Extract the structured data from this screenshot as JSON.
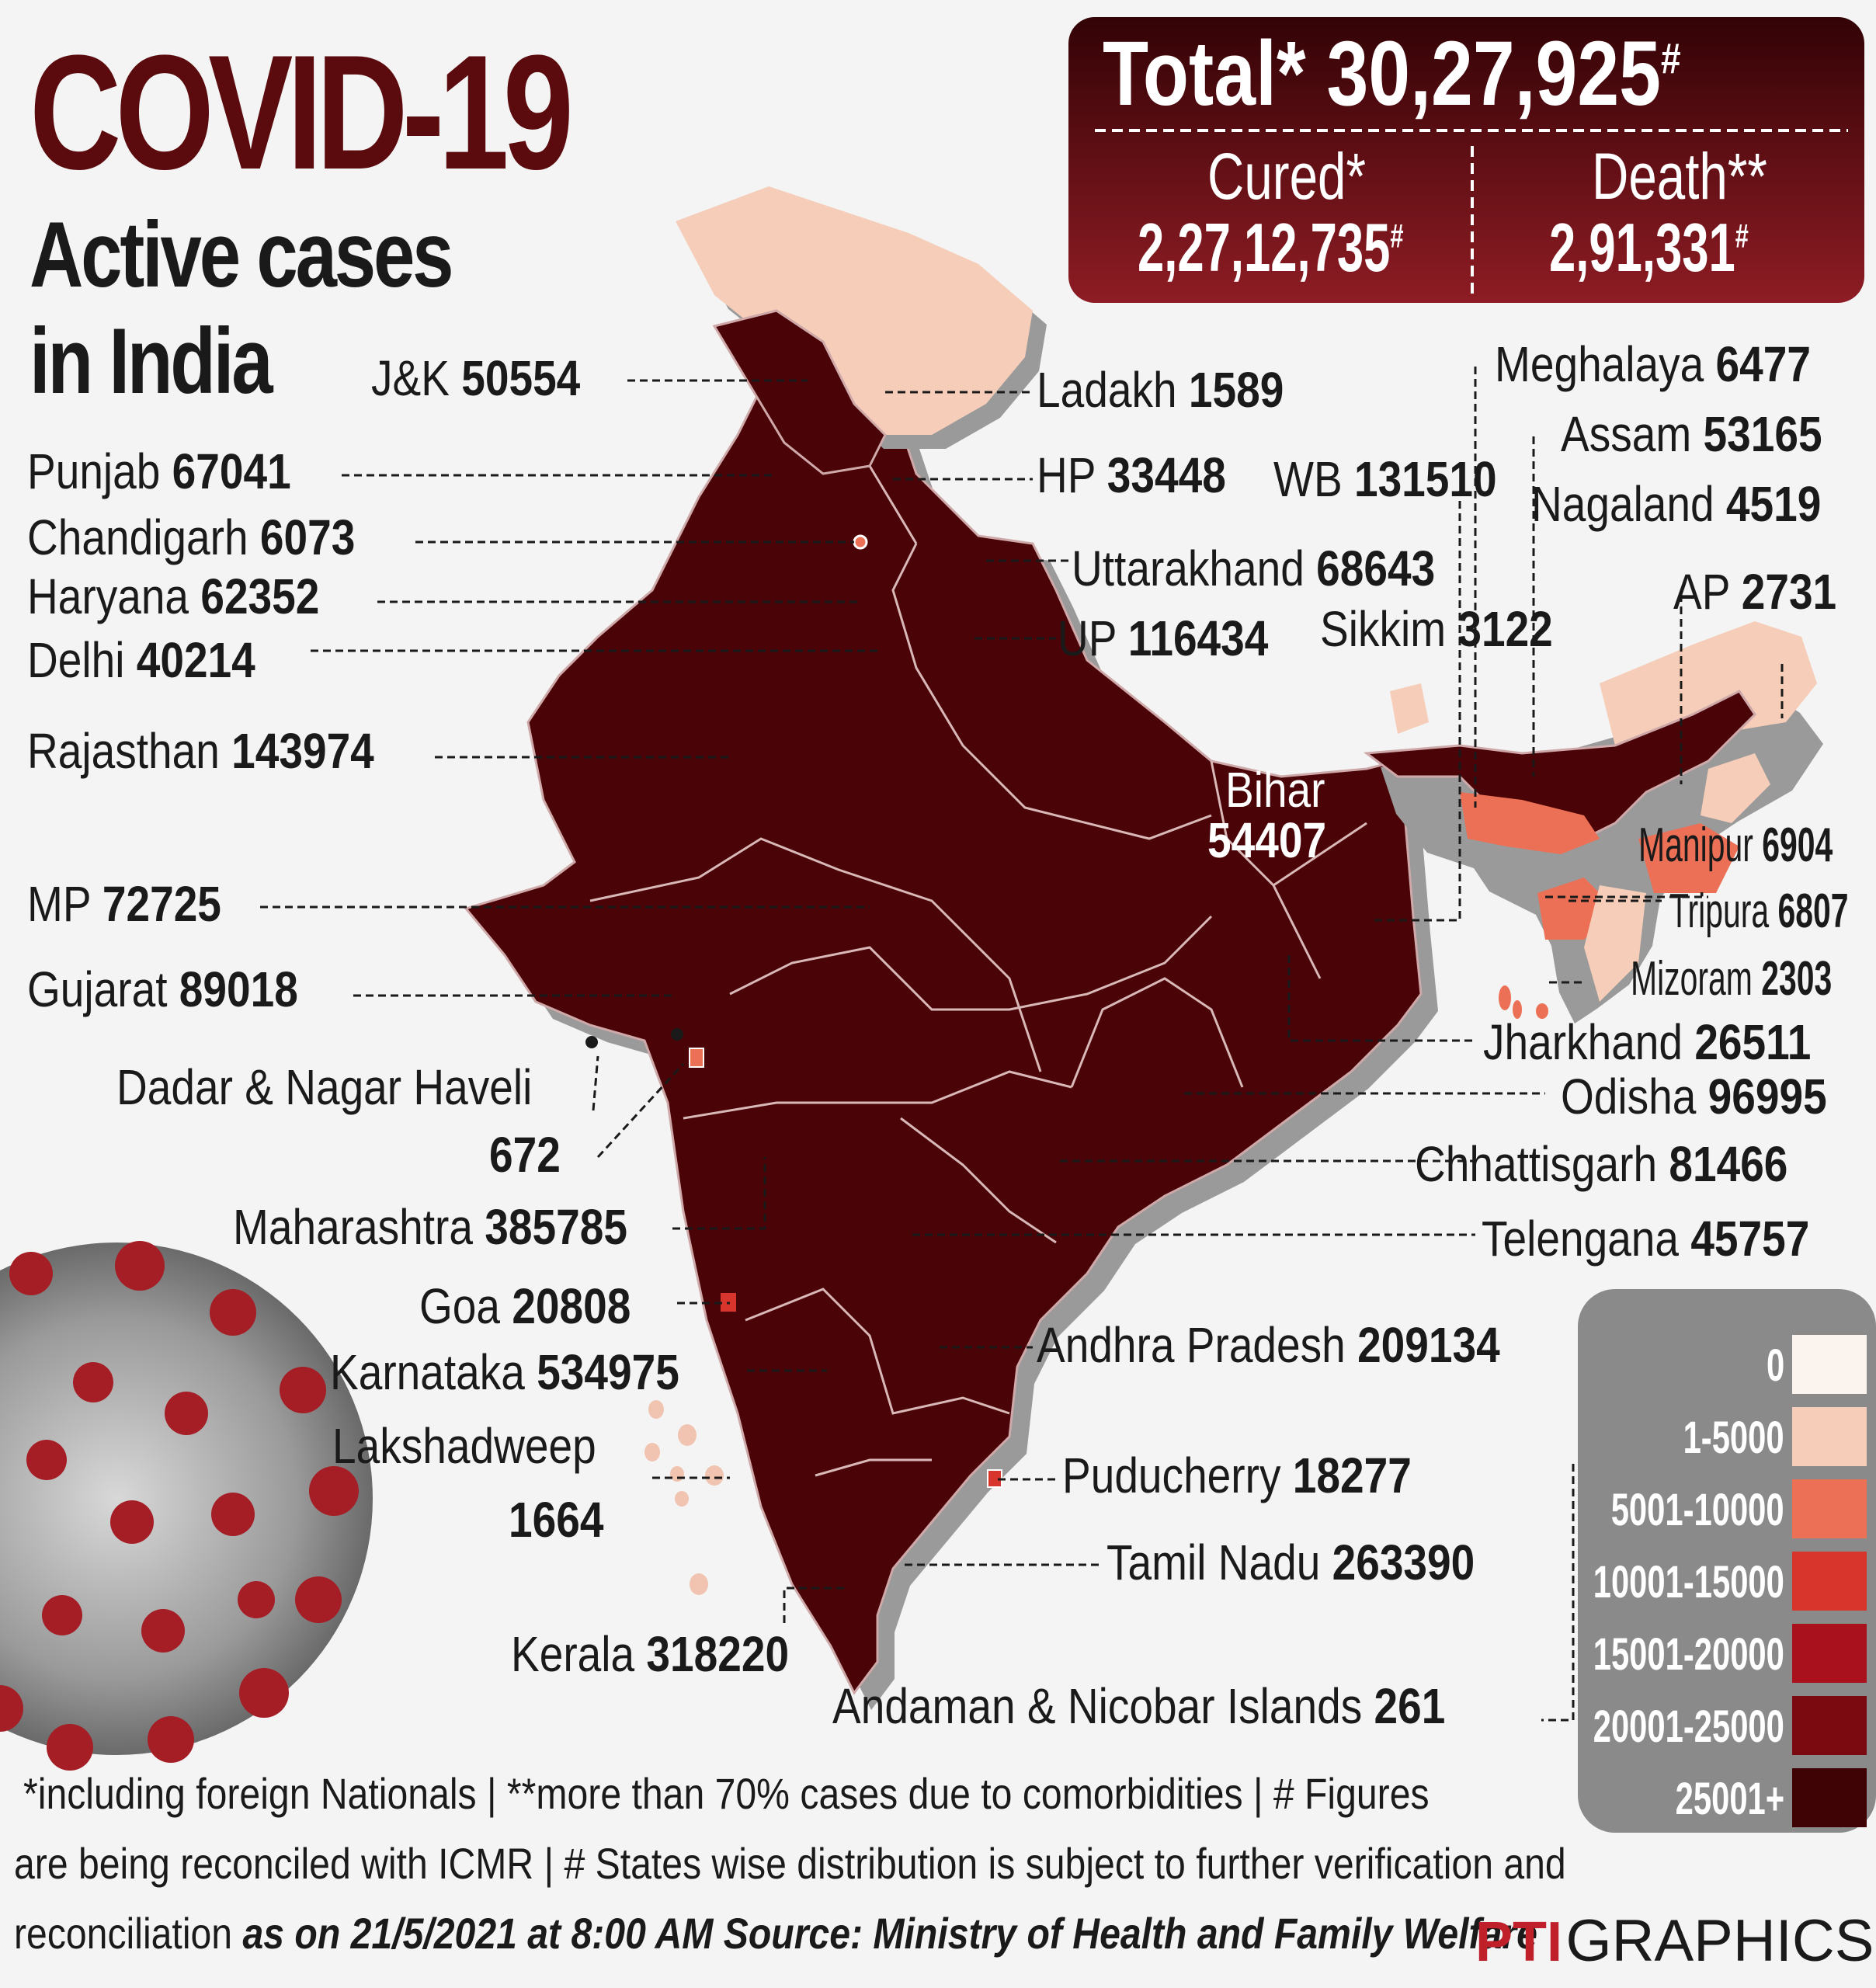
{
  "title": "COVID-19",
  "subtitle_line1": "Active cases",
  "subtitle_line2": "in India",
  "totals": {
    "total_label": "Total*",
    "total_value": "30,27,925",
    "total_mark": "#",
    "cured_label": "Cured*",
    "cured_value": "2,27,12,735",
    "cured_mark": "#",
    "death_label": "Death**",
    "death_value": "2,91,331",
    "death_mark": "#"
  },
  "states": {
    "jk": {
      "name": "J&K",
      "value": "50554"
    },
    "ladakh": {
      "name": "Ladakh",
      "value": "1589"
    },
    "punjab": {
      "name": "Punjab",
      "value": "67041"
    },
    "hp": {
      "name": "HP",
      "value": "33448"
    },
    "wb": {
      "name": "WB",
      "value": "131510"
    },
    "chandigarh": {
      "name": "Chandigarh",
      "value": "6073"
    },
    "haryana": {
      "name": "Haryana",
      "value": "62352"
    },
    "uttarakhand": {
      "name": "Uttarakhand",
      "value": "68643"
    },
    "delhi": {
      "name": "Delhi",
      "value": "40214"
    },
    "up": {
      "name": "UP",
      "value": "116434"
    },
    "sikkim": {
      "name": "Sikkim",
      "value": "3122"
    },
    "rajasthan": {
      "name": "Rajasthan",
      "value": "143974"
    },
    "bihar": {
      "name": "Bihar",
      "value": "54407"
    },
    "mp": {
      "name": "MP",
      "value": "72725"
    },
    "gujarat": {
      "name": "Gujarat",
      "value": "89018"
    },
    "dnh": {
      "name": "Dadar & Nagar Haveli",
      "value": "672"
    },
    "maharashtra": {
      "name": "Maharashtra",
      "value": "385785"
    },
    "goa": {
      "name": "Goa",
      "value": "20808"
    },
    "karnataka": {
      "name": "Karnataka",
      "value": "534975"
    },
    "lakshadweep": {
      "name": "Lakshadweep",
      "value": "1664"
    },
    "kerala": {
      "name": "Kerala",
      "value": "318220"
    },
    "meghalaya": {
      "name": "Meghalaya",
      "value": "6477"
    },
    "assam": {
      "name": "Assam",
      "value": "53165"
    },
    "nagaland": {
      "name": "Nagaland",
      "value": "4519"
    },
    "ap_arunachal": {
      "name": "AP",
      "value": "2731"
    },
    "manipur": {
      "name": "Manipur",
      "value": "6904"
    },
    "tripura": {
      "name": "Tripura",
      "value": "6807"
    },
    "mizoram": {
      "name": "Mizoram",
      "value": "2303"
    },
    "jharkhand": {
      "name": "Jharkhand",
      "value": "26511"
    },
    "odisha": {
      "name": "Odisha",
      "value": "96995"
    },
    "chhattisgarh": {
      "name": "Chhattisgarh",
      "value": "81466"
    },
    "telengana": {
      "name": "Telengana",
      "value": "45757"
    },
    "andhra": {
      "name": "Andhra Pradesh",
      "value": "209134"
    },
    "puducherry": {
      "name": "Puducherry",
      "value": "18277"
    },
    "tamilnadu": {
      "name": "Tamil Nadu",
      "value": "263390"
    },
    "andaman": {
      "name": "Andaman & Nicobar Islands",
      "value": "261"
    }
  },
  "legend": [
    {
      "label": "0",
      "color": "#fbf3ee"
    },
    {
      "label": "1-5000",
      "color": "#f5cdb8"
    },
    {
      "label": "5001-10000",
      "color": "#ec7055"
    },
    {
      "label": "10001-15000",
      "color": "#d8362c"
    },
    {
      "label": "15001-20000",
      "color": "#a9121c"
    },
    {
      "label": "20001-25000",
      "color": "#7a0a10"
    },
    {
      "label": "25001+",
      "color": "#3f0305"
    }
  ],
  "colors": {
    "high": "#4a0306",
    "low": "#f5cdb8",
    "mid": "#ec7055",
    "title": "#5b0a0e",
    "box_top": "#3a0408",
    "box_bottom": "#8a1a22"
  },
  "footnote": {
    "line1": "*including foreign Nationals | **more than 70% cases due to comorbidities | # Figures",
    "line2": "are being reconciled with ICMR | # States wise distribution is subject to further verification and",
    "line3_plain": "reconciliation",
    "line3_date": "as on 21/5/2021 at 8:00 AM",
    "line3_source": "Source: Ministry of Health and Family Welfare"
  },
  "credit": {
    "logo": "PTI",
    "text": "GRAPHICS"
  }
}
